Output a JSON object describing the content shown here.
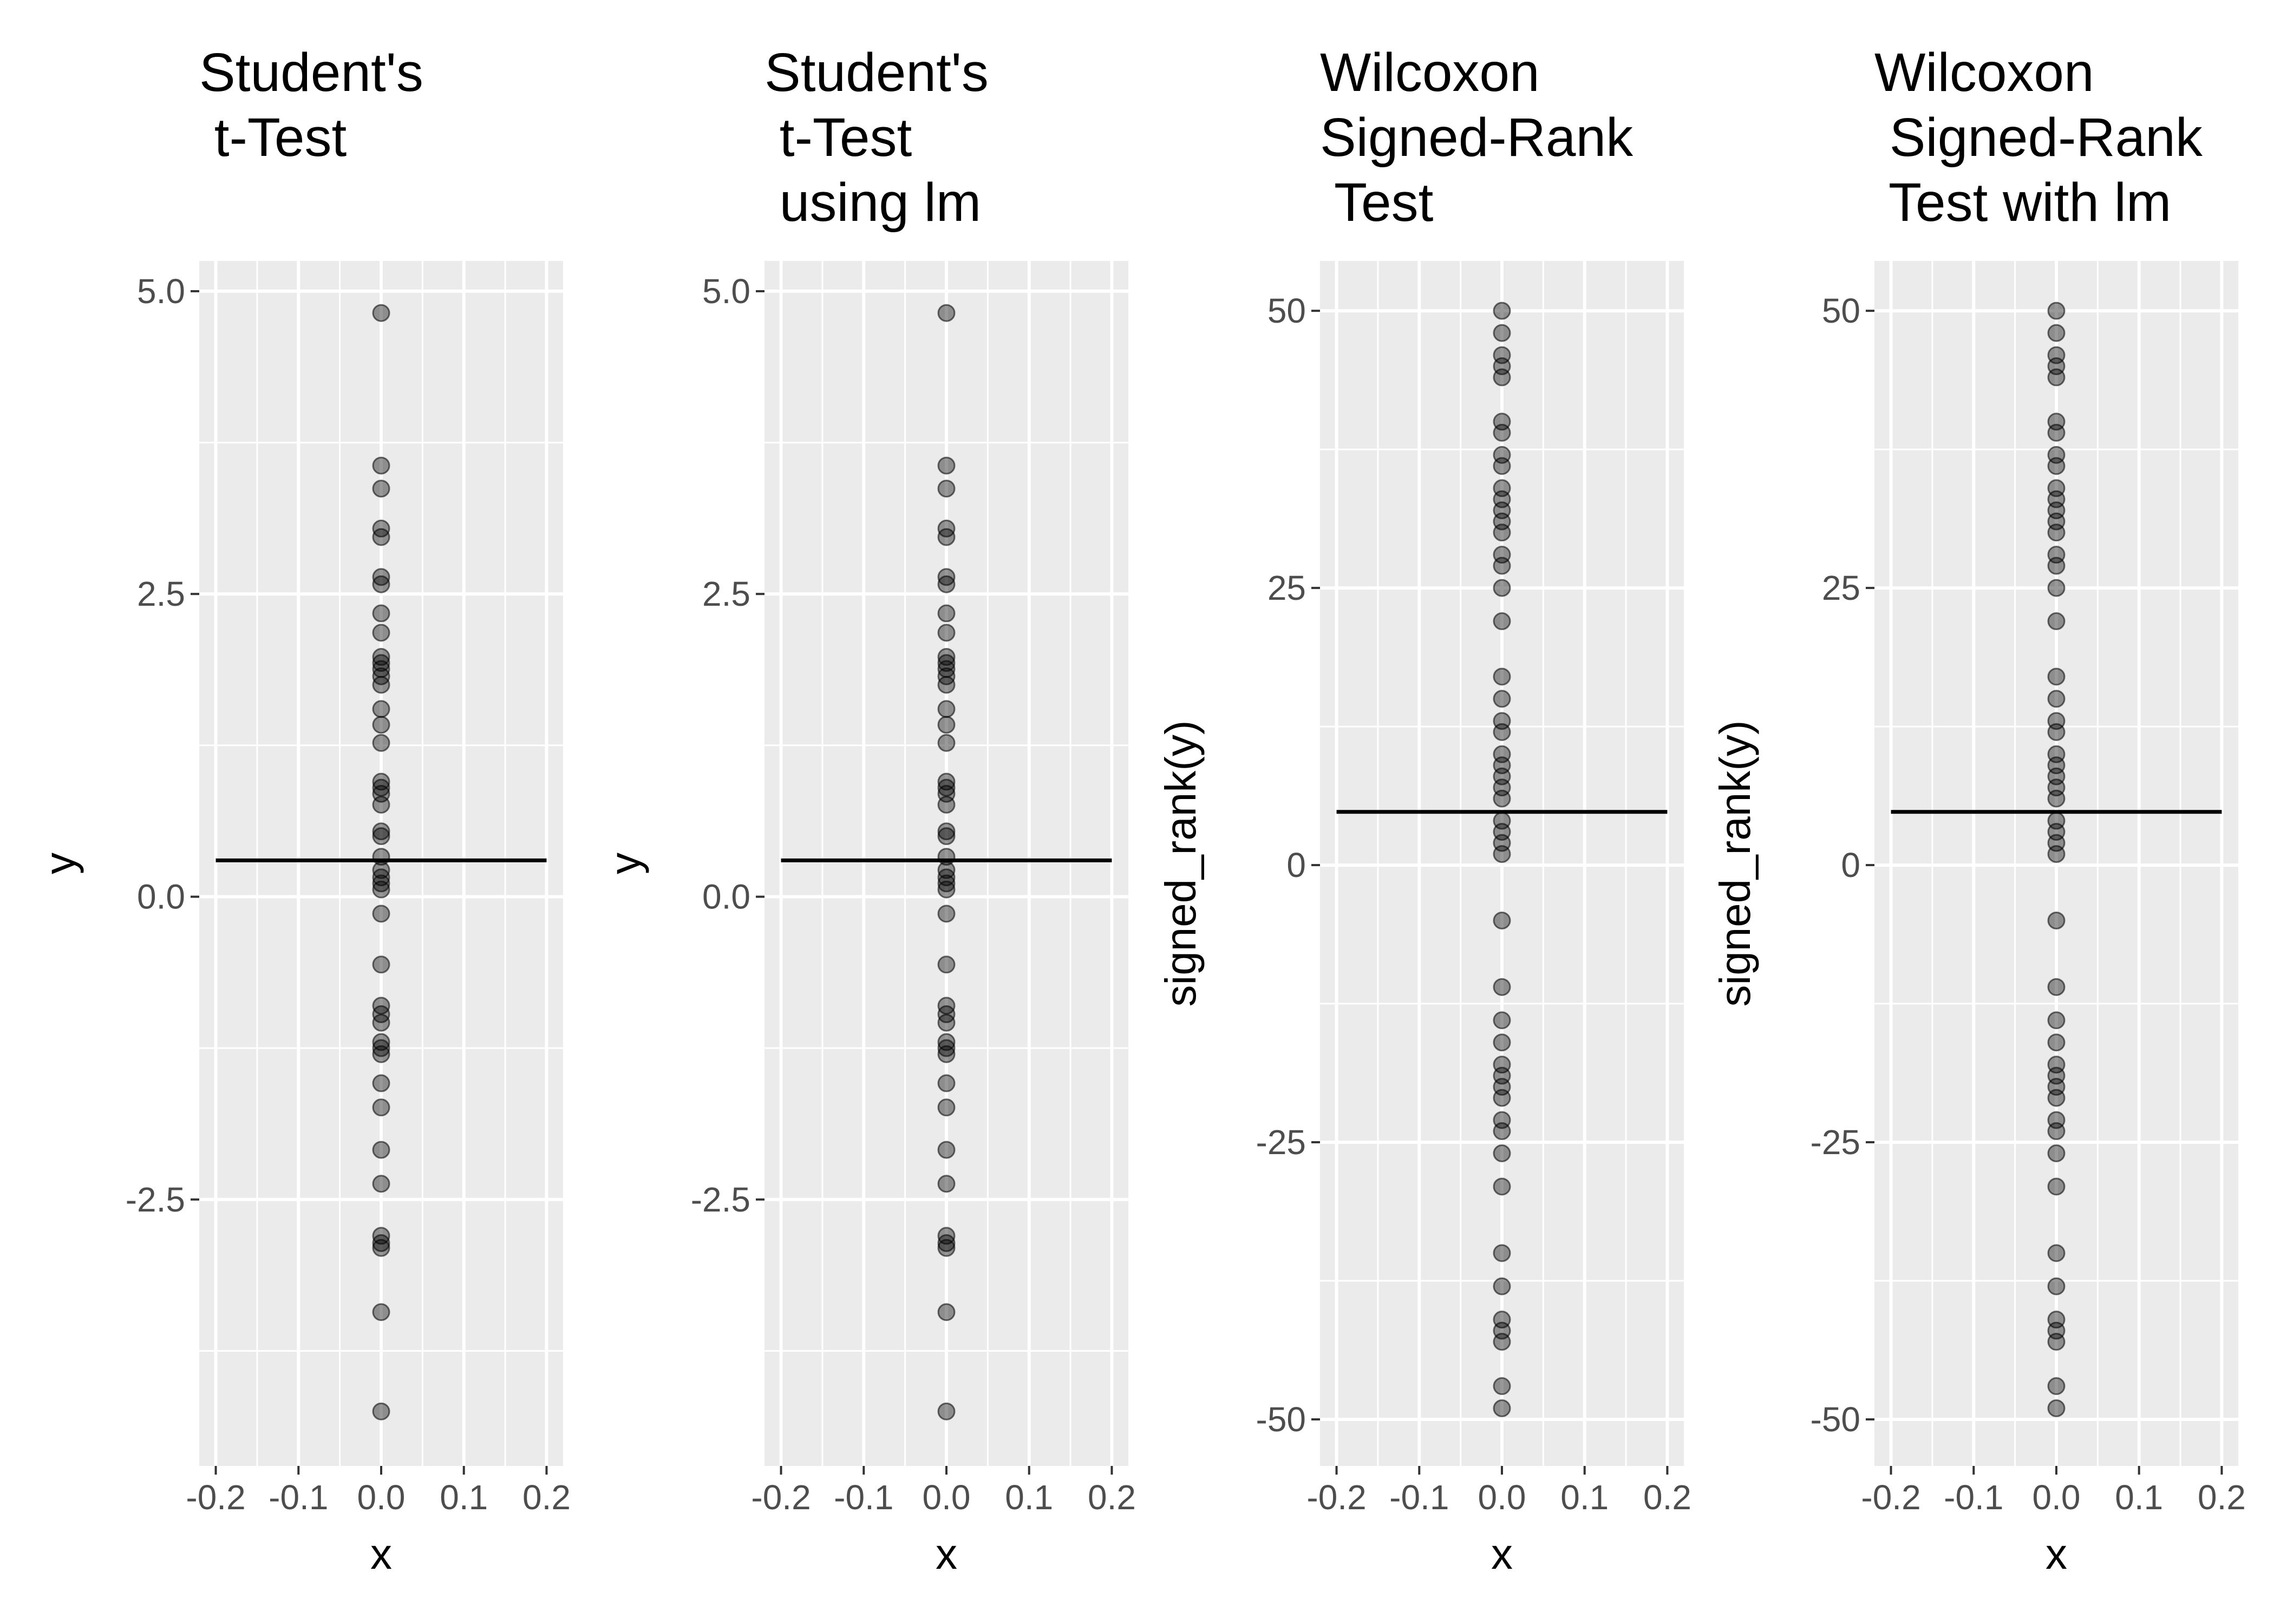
{
  "chart_data": [
    {
      "type": "scatter",
      "title_lines": [
        "Student's",
        " t-Test"
      ],
      "xlabel": "x",
      "ylabel": "y",
      "xlim": [
        -0.22,
        0.22
      ],
      "ylim": [
        -4.7,
        5.25
      ],
      "x_ticks": [
        -0.2,
        -0.1,
        0.0,
        0.1,
        0.2
      ],
      "x_tick_labels": [
        "-0.2",
        "-0.1",
        "0.0",
        "0.1",
        "0.2"
      ],
      "y_ticks": [
        -2.5,
        0.0,
        2.5,
        5.0
      ],
      "y_tick_labels": [
        "-2.5",
        "0.0",
        "2.5",
        "5.0"
      ],
      "grid": true,
      "hline": {
        "y": 0.3,
        "x_from": -0.2,
        "x_to": 0.2
      },
      "points": {
        "x": 0.0,
        "y": [
          4.82,
          3.56,
          3.37,
          3.04,
          2.97,
          2.64,
          2.58,
          2.34,
          2.18,
          1.98,
          1.93,
          1.88,
          1.82,
          1.75,
          1.55,
          1.42,
          1.27,
          0.95,
          0.9,
          0.85,
          0.76,
          0.54,
          0.5,
          0.33,
          0.22,
          0.16,
          0.11,
          0.06,
          -0.14,
          -0.56,
          -0.9,
          -0.97,
          -1.04,
          -1.2,
          -1.25,
          -1.3,
          -1.54,
          -1.74,
          -2.09,
          -2.37,
          -2.8,
          -2.86,
          -2.9,
          -3.43,
          -4.25
        ]
      }
    },
    {
      "type": "scatter",
      "title_lines": [
        "Student's",
        " t-Test",
        " using lm"
      ],
      "xlabel": "x",
      "ylabel": "y",
      "xlim": [
        -0.22,
        0.22
      ],
      "ylim": [
        -4.7,
        5.25
      ],
      "x_ticks": [
        -0.2,
        -0.1,
        0.0,
        0.1,
        0.2
      ],
      "x_tick_labels": [
        "-0.2",
        "-0.1",
        "0.0",
        "0.1",
        "0.2"
      ],
      "y_ticks": [
        -2.5,
        0.0,
        2.5,
        5.0
      ],
      "y_tick_labels": [
        "-2.5",
        "0.0",
        "2.5",
        "5.0"
      ],
      "grid": true,
      "hline": {
        "y": 0.3,
        "x_from": -0.2,
        "x_to": 0.2
      },
      "points": {
        "x": 0.0,
        "y": [
          4.82,
          3.56,
          3.37,
          3.04,
          2.97,
          2.64,
          2.58,
          2.34,
          2.18,
          1.98,
          1.93,
          1.88,
          1.82,
          1.75,
          1.55,
          1.42,
          1.27,
          0.95,
          0.9,
          0.85,
          0.76,
          0.54,
          0.5,
          0.33,
          0.22,
          0.16,
          0.11,
          0.06,
          -0.14,
          -0.56,
          -0.9,
          -0.97,
          -1.04,
          -1.2,
          -1.25,
          -1.3,
          -1.54,
          -1.74,
          -2.09,
          -2.37,
          -2.8,
          -2.86,
          -2.9,
          -3.43,
          -4.25
        ]
      }
    },
    {
      "type": "scatter",
      "title_lines": [
        "Wilcoxon",
        "Signed-Rank",
        " Test"
      ],
      "xlabel": "x",
      "ylabel": "signed_rank(y)",
      "xlim": [
        -0.22,
        0.22
      ],
      "ylim": [
        -54.2,
        54.5
      ],
      "x_ticks": [
        -0.2,
        -0.1,
        0.0,
        0.1,
        0.2
      ],
      "x_tick_labels": [
        "-0.2",
        "-0.1",
        "0.0",
        "0.1",
        "0.2"
      ],
      "y_ticks": [
        -50,
        -25,
        0,
        25,
        50
      ],
      "y_tick_labels": [
        "-50",
        "-25",
        "0",
        "25",
        "50"
      ],
      "grid": true,
      "hline": {
        "y": 4.8,
        "x_from": -0.2,
        "x_to": 0.2
      },
      "points": {
        "x": 0.0,
        "y": [
          50,
          48,
          46,
          45,
          44,
          40,
          39,
          37,
          36,
          34,
          33,
          32,
          31,
          30,
          28,
          27,
          25,
          22,
          17,
          15,
          13,
          12,
          10,
          9,
          8,
          7,
          6,
          4,
          3,
          2,
          1,
          -5,
          -11,
          -14,
          -16,
          -18,
          -19,
          -20,
          -21,
          -23,
          -24,
          -26,
          -29,
          -35,
          -38,
          -41,
          -42,
          -43,
          -47,
          -49
        ]
      }
    },
    {
      "type": "scatter",
      "title_lines": [
        "Wilcoxon",
        " Signed-Rank",
        " Test with lm"
      ],
      "xlabel": "x",
      "ylabel": "signed_rank(y)",
      "xlim": [
        -0.22,
        0.22
      ],
      "ylim": [
        -54.2,
        54.5
      ],
      "x_ticks": [
        -0.2,
        -0.1,
        0.0,
        0.1,
        0.2
      ],
      "x_tick_labels": [
        "-0.2",
        "-0.1",
        "0.0",
        "0.1",
        "0.2"
      ],
      "y_ticks": [
        -50,
        -25,
        0,
        25,
        50
      ],
      "y_tick_labels": [
        "-50",
        "-25",
        "0",
        "25",
        "50"
      ],
      "grid": true,
      "hline": {
        "y": 4.8,
        "x_from": -0.2,
        "x_to": 0.2
      },
      "points": {
        "x": 0.0,
        "y": [
          50,
          48,
          46,
          45,
          44,
          40,
          39,
          37,
          36,
          34,
          33,
          32,
          31,
          30,
          28,
          27,
          25,
          22,
          17,
          15,
          13,
          12,
          10,
          9,
          8,
          7,
          6,
          4,
          3,
          2,
          1,
          -5,
          -11,
          -14,
          -16,
          -18,
          -19,
          -20,
          -21,
          -23,
          -24,
          -26,
          -29,
          -35,
          -38,
          -41,
          -42,
          -43,
          -47,
          -49
        ]
      }
    }
  ],
  "style": {
    "panel_background": "#ebebeb",
    "grid_color": "#ffffff",
    "point_fill": "#000000",
    "point_opacity": 0.4,
    "hline_color": "#000000",
    "tick_label_color": "#4d4d4d",
    "title_color": "#000000"
  }
}
